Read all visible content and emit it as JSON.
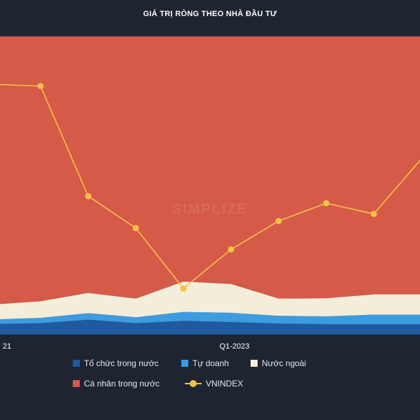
{
  "title": "GIÁ TRỊ RÒNG THEO NHÀ ĐẦU TƯ",
  "watermark": "SIMPLIZE",
  "chart_data": {
    "type": "area",
    "stacking": "percent",
    "x_ticks": [
      "21",
      "Q1-2023"
    ],
    "series": [
      {
        "name": "Tổ chức trong nước",
        "color": "#1f5a9e",
        "values": [
          3.5,
          3.8,
          5.0,
          3.8,
          4.6,
          4.2,
          3.7,
          3.5,
          3.5,
          3.5
        ]
      },
      {
        "name": "Tự doanh",
        "color": "#3d9be0",
        "values": [
          1.6,
          1.8,
          2.2,
          2.0,
          3.0,
          3.1,
          2.6,
          2.6,
          3.2,
          3.2
        ]
      },
      {
        "name": "Nước ngoài",
        "color": "#f4edd9",
        "values": [
          5.0,
          5.6,
          6.8,
          6.3,
          10.2,
          9.7,
          5.8,
          6.1,
          6.8,
          6.8
        ]
      },
      {
        "name": "Cá nhân trong nước",
        "color": "#d55a48",
        "values": [
          89.9,
          88.8,
          86.0,
          87.9,
          82.2,
          83.0,
          87.9,
          87.8,
          86.5,
          86.5
        ]
      }
    ],
    "line_series": {
      "name": "VNINDEX",
      "color": "#f3c146",
      "values": [
        1505,
        1500,
        1190,
        1100,
        930,
        1040,
        1120,
        1170,
        1140,
        1295
      ],
      "ylim": [
        800,
        1640
      ]
    },
    "legend_position": "bottom",
    "grid": false
  }
}
